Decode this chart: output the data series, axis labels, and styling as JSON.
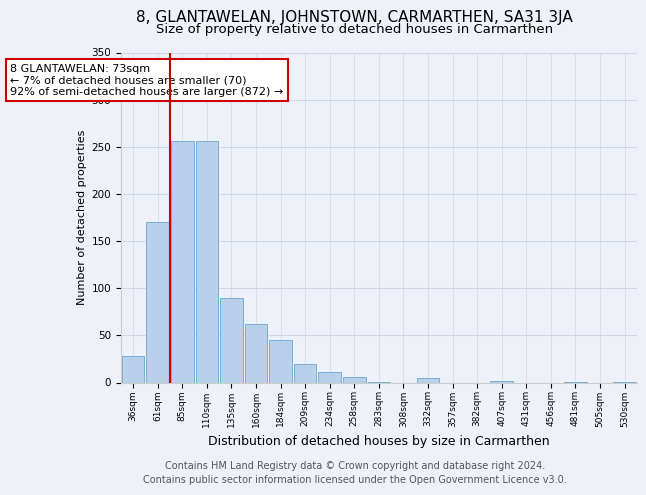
{
  "title": "8, GLANTAWELAN, JOHNSTOWN, CARMARTHEN, SA31 3JA",
  "subtitle": "Size of property relative to detached houses in Carmarthen",
  "xlabel": "Distribution of detached houses by size in Carmarthen",
  "ylabel": "Number of detached properties",
  "bar_labels": [
    "36sqm",
    "61sqm",
    "85sqm",
    "110sqm",
    "135sqm",
    "160sqm",
    "184sqm",
    "209sqm",
    "234sqm",
    "258sqm",
    "283sqm",
    "308sqm",
    "332sqm",
    "357sqm",
    "382sqm",
    "407sqm",
    "431sqm",
    "456sqm",
    "481sqm",
    "505sqm",
    "530sqm"
  ],
  "bar_values": [
    28,
    170,
    256,
    256,
    90,
    62,
    45,
    20,
    11,
    6,
    1,
    0,
    5,
    0,
    0,
    2,
    0,
    0,
    1,
    0,
    1
  ],
  "bar_color": "#b8d0ea",
  "bar_edge_color": "#7aaed4",
  "property_line_x": 1.5,
  "property_line_color": "#cc0000",
  "annotation_text": "8 GLANTAWELAN: 73sqm\n← 7% of detached houses are smaller (70)\n92% of semi-detached houses are larger (872) →",
  "annotation_box_color": "#ffffff",
  "annotation_box_edge_color": "#cc0000",
  "ylim": [
    0,
    350
  ],
  "yticks": [
    0,
    50,
    100,
    150,
    200,
    250,
    300,
    350
  ],
  "footer_text": "Contains HM Land Registry data © Crown copyright and database right 2024.\nContains public sector information licensed under the Open Government Licence v3.0.",
  "background_color": "#eef2f8",
  "title_fontsize": 11,
  "xlabel_fontsize": 9,
  "ylabel_fontsize": 8,
  "footer_fontsize": 7,
  "annot_fontsize": 8
}
